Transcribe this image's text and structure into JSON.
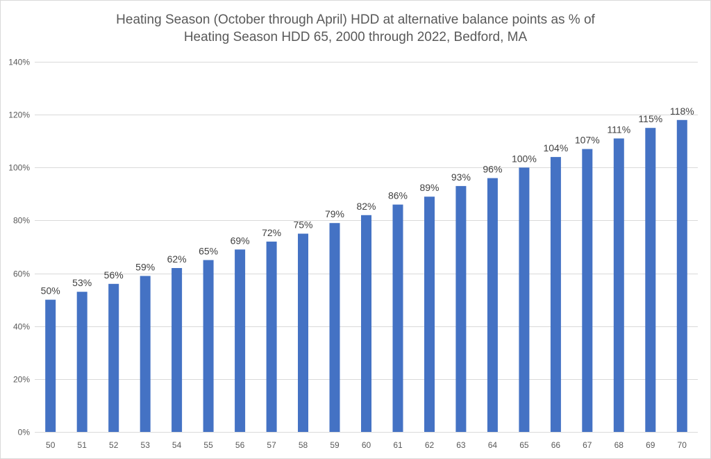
{
  "chart_data": {
    "type": "bar",
    "title": [
      "Heating Season (October through April) HDD at alternative balance points as % of",
      "Heating Season HDD 65, 2000 through 2022, Bedford, MA"
    ],
    "xlabel": "",
    "ylabel": "",
    "categories": [
      "50",
      "51",
      "52",
      "53",
      "54",
      "55",
      "56",
      "57",
      "58",
      "59",
      "60",
      "61",
      "62",
      "63",
      "64",
      "65",
      "66",
      "67",
      "68",
      "69",
      "70"
    ],
    "values": [
      50,
      53,
      56,
      59,
      62,
      65,
      69,
      72,
      75,
      79,
      82,
      86,
      89,
      93,
      96,
      100,
      104,
      107,
      111,
      115,
      118
    ],
    "data_labels": [
      "50%",
      "53%",
      "56%",
      "59%",
      "62%",
      "65%",
      "69%",
      "72%",
      "75%",
      "79%",
      "82%",
      "86%",
      "89%",
      "93%",
      "96%",
      "100%",
      "104%",
      "107%",
      "111%",
      "115%",
      "118%"
    ],
    "ylim": [
      0,
      140
    ],
    "yticks": [
      0,
      20,
      40,
      60,
      80,
      100,
      120,
      140
    ],
    "ytick_labels": [
      "0%",
      "20%",
      "40%",
      "60%",
      "80%",
      "100%",
      "120%",
      "140%"
    ],
    "grid": true,
    "legend": "none",
    "colors": {
      "bar": "#4472c4",
      "grid": "#d9d9d9",
      "text": "#595959"
    }
  }
}
